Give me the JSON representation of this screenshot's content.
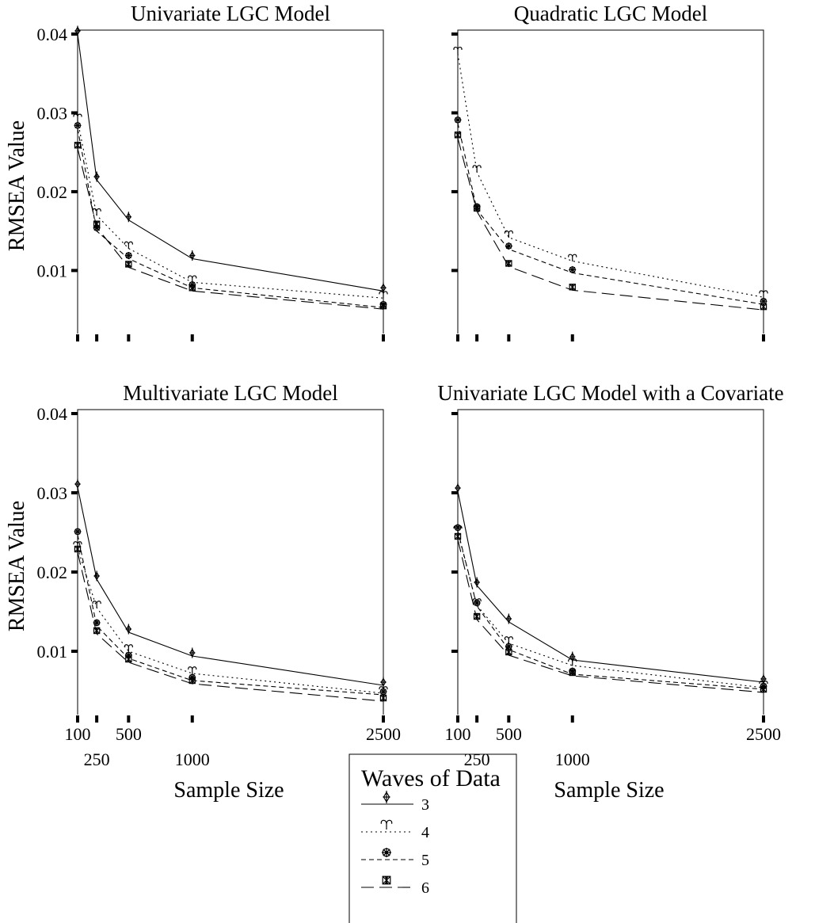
{
  "figure": {
    "ylabel": "RMSEA Value",
    "xlabel": "Sample Size",
    "x_ticks": [
      100,
      250,
      500,
      1000,
      2500
    ],
    "y_ticks": [
      "0.01",
      "0.02",
      "0.03",
      "0.04"
    ]
  },
  "legend": {
    "title": "Waves of Data",
    "entries": [
      {
        "label": "3",
        "style": "solid",
        "marker": "diamond-cross"
      },
      {
        "label": "4",
        "style": "dotted",
        "marker": "aries"
      },
      {
        "label": "5",
        "style": "dashed-short",
        "marker": "wheel"
      },
      {
        "label": "6",
        "style": "dashed-long",
        "marker": "maltese-cross"
      }
    ]
  },
  "chart_data": [
    {
      "type": "line",
      "title": "Univariate LGC Model",
      "x": [
        100,
        250,
        500,
        1000,
        2500
      ],
      "ylim": [
        0.002,
        0.0405
      ],
      "ylabel": "RMSEA Value",
      "xlabel": "",
      "series": [
        {
          "name": "3",
          "values": [
            0.04,
            0.0215,
            0.0164,
            0.0115,
            0.0074
          ]
        },
        {
          "name": "4",
          "values": [
            0.029,
            0.017,
            0.0128,
            0.0085,
            0.0065
          ]
        },
        {
          "name": "5",
          "values": [
            0.028,
            0.015,
            0.0115,
            0.0078,
            0.0053
          ]
        },
        {
          "name": "6",
          "values": [
            0.0255,
            0.0155,
            0.0104,
            0.0074,
            0.0051
          ]
        }
      ]
    },
    {
      "type": "line",
      "title": "Quadratic LGC Model",
      "x": [
        100,
        250,
        500,
        1000,
        2500
      ],
      "ylim": [
        0.002,
        0.0405
      ],
      "ylabel": "",
      "xlabel": "",
      "series": [
        {
          "name": "4",
          "values": [
            0.0375,
            0.0225,
            0.0142,
            0.0112,
            0.0066
          ]
        },
        {
          "name": "5",
          "values": [
            0.0287,
            0.0177,
            0.0127,
            0.0097,
            0.0057
          ]
        },
        {
          "name": "6",
          "values": [
            0.0268,
            0.0175,
            0.0105,
            0.0075,
            0.005
          ]
        }
      ]
    },
    {
      "type": "line",
      "title": "Multivariate LGC Model",
      "x": [
        100,
        250,
        500,
        1000,
        2500
      ],
      "ylim": [
        0.002,
        0.0405
      ],
      "ylabel": "RMSEA Value",
      "xlabel": "Sample Size",
      "series": [
        {
          "name": "3",
          "values": [
            0.0307,
            0.0191,
            0.0124,
            0.0094,
            0.0057
          ]
        },
        {
          "name": "4",
          "values": [
            0.023,
            0.0155,
            0.01,
            0.0072,
            0.0047
          ]
        },
        {
          "name": "5",
          "values": [
            0.0247,
            0.0132,
            0.0091,
            0.0063,
            0.0045
          ]
        },
        {
          "name": "6",
          "values": [
            0.0225,
            0.0122,
            0.0086,
            0.0059,
            0.0037
          ]
        }
      ]
    },
    {
      "type": "line",
      "title": "Univariate LGC Model with a Covariate",
      "x": [
        100,
        250,
        500,
        1000,
        2500
      ],
      "ylim": [
        0.002,
        0.0405
      ],
      "ylabel": "",
      "xlabel": "Sample Size",
      "series": [
        {
          "name": "3",
          "values": [
            0.0302,
            0.0183,
            0.0137,
            0.0089,
            0.0061
          ]
        },
        {
          "name": "4",
          "values": [
            0.025,
            0.0158,
            0.011,
            0.0082,
            0.0054
          ]
        },
        {
          "name": "5",
          "values": [
            0.0252,
            0.0157,
            0.0102,
            0.0071,
            0.0052
          ]
        },
        {
          "name": "6",
          "values": [
            0.0241,
            0.014,
            0.0095,
            0.0069,
            0.0048
          ]
        }
      ]
    }
  ]
}
